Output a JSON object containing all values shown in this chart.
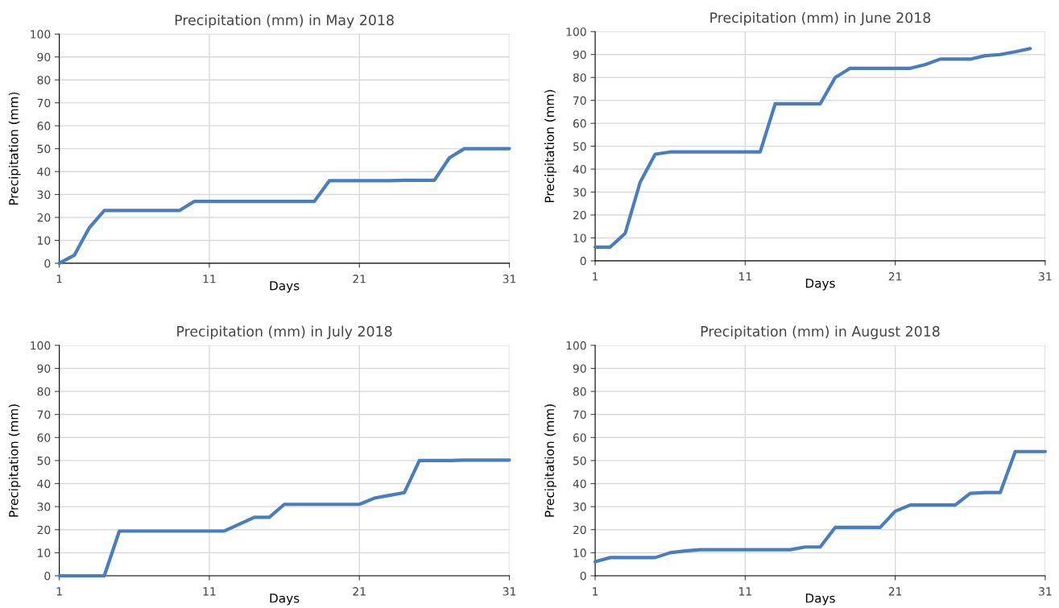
{
  "chart_data": [
    {
      "type": "line",
      "title": "Precipitation (mm) in May 2018",
      "xlabel": "Days",
      "ylabel": "Precipitation (mm)",
      "xlim": [
        1,
        31
      ],
      "xticks": [
        1,
        11,
        21,
        31
      ],
      "ylim": [
        0,
        100
      ],
      "yticks": [
        0,
        10,
        20,
        30,
        40,
        50,
        60,
        70,
        80,
        90,
        100
      ],
      "grid": true,
      "marker": "none",
      "line_style": "solid",
      "x": [
        1,
        2,
        3,
        4,
        5,
        6,
        7,
        8,
        9,
        10,
        11,
        12,
        13,
        14,
        15,
        16,
        17,
        18,
        19,
        20,
        21,
        22,
        23,
        24,
        25,
        26,
        27,
        28,
        29,
        30,
        31
      ],
      "series": [
        {
          "color": "#4a7ebb",
          "values": [
            0,
            3.5,
            15.5,
            23,
            23,
            23,
            23,
            23,
            23,
            27,
            27,
            27,
            27,
            27,
            27,
            27,
            27,
            27,
            36,
            36,
            36,
            36,
            36,
            36.2,
            36.2,
            36.2,
            46,
            50,
            50,
            50,
            50
          ]
        }
      ]
    },
    {
      "type": "line",
      "title": "Precipitation (mm) in June 2018",
      "xlabel": "Days",
      "ylabel": "Precipitation (mm)",
      "xlim": [
        1,
        31
      ],
      "xticks": [
        1,
        11,
        21,
        31
      ],
      "ylim": [
        0,
        100
      ],
      "yticks": [
        0,
        10,
        20,
        30,
        40,
        50,
        60,
        70,
        80,
        90,
        100
      ],
      "grid": true,
      "marker": "none",
      "line_style": "solid",
      "x": [
        1,
        2,
        3,
        4,
        5,
        6,
        7,
        8,
        9,
        10,
        11,
        12,
        13,
        14,
        15,
        16,
        17,
        18,
        19,
        20,
        21,
        22,
        23,
        24,
        25,
        26,
        27,
        28,
        29,
        30
      ],
      "series": [
        {
          "color": "#4a7ebb",
          "values": [
            6,
            6,
            12,
            34.3,
            46.5,
            47.5,
            47.5,
            47.5,
            47.5,
            47.5,
            47.5,
            47.5,
            68.5,
            68.5,
            68.5,
            68.5,
            80,
            84,
            84,
            84,
            84,
            84,
            85.6,
            88,
            88,
            88,
            89.5,
            90,
            91.2,
            92.6
          ]
        }
      ]
    },
    {
      "type": "line",
      "title": "Precipitation (mm) in July 2018",
      "xlabel": "Days",
      "ylabel": "Precipitation (mm)",
      "xlim": [
        1,
        31
      ],
      "xticks": [
        1,
        11,
        21,
        31
      ],
      "ylim": [
        0,
        100
      ],
      "yticks": [
        0,
        10,
        20,
        30,
        40,
        50,
        60,
        70,
        80,
        90,
        100
      ],
      "grid": true,
      "marker": "none",
      "line_style": "solid",
      "x": [
        1,
        2,
        3,
        4,
        5,
        6,
        7,
        8,
        9,
        10,
        11,
        12,
        13,
        14,
        15,
        16,
        17,
        18,
        19,
        20,
        21,
        22,
        23,
        24,
        25,
        26,
        27,
        28,
        29,
        30,
        31
      ],
      "series": [
        {
          "color": "#4a7ebb",
          "values": [
            0,
            0,
            0,
            0,
            19.4,
            19.4,
            19.4,
            19.4,
            19.4,
            19.4,
            19.4,
            19.4,
            22.4,
            25.4,
            25.4,
            31,
            31,
            31,
            31,
            31,
            31,
            33.7,
            34.9,
            36.1,
            50,
            50,
            50,
            50.2,
            50.2,
            50.2,
            50.2
          ]
        }
      ]
    },
    {
      "type": "line",
      "title": "Precipitation (mm) in August 2018",
      "xlabel": "Days",
      "ylabel": "Precipitation (mm)",
      "xlim": [
        1,
        31
      ],
      "xticks": [
        1,
        11,
        21,
        31
      ],
      "ylim": [
        0,
        100
      ],
      "yticks": [
        0,
        10,
        20,
        30,
        40,
        50,
        60,
        70,
        80,
        90,
        100
      ],
      "grid": true,
      "marker": "none",
      "line_style": "solid",
      "x": [
        1,
        2,
        3,
        4,
        5,
        6,
        7,
        8,
        9,
        10,
        11,
        12,
        13,
        14,
        15,
        16,
        17,
        18,
        19,
        20,
        21,
        22,
        23,
        24,
        25,
        26,
        27,
        28,
        29,
        30,
        31
      ],
      "series": [
        {
          "color": "#4a7ebb",
          "values": [
            6.1,
            7.9,
            7.9,
            7.9,
            7.9,
            10,
            10.8,
            11.3,
            11.3,
            11.3,
            11.3,
            11.3,
            11.3,
            11.3,
            12.5,
            12.5,
            21,
            21,
            21,
            21,
            28,
            30.7,
            30.7,
            30.7,
            30.7,
            35.8,
            36.1,
            36.1,
            53.9,
            53.9,
            53.9
          ]
        }
      ]
    }
  ]
}
